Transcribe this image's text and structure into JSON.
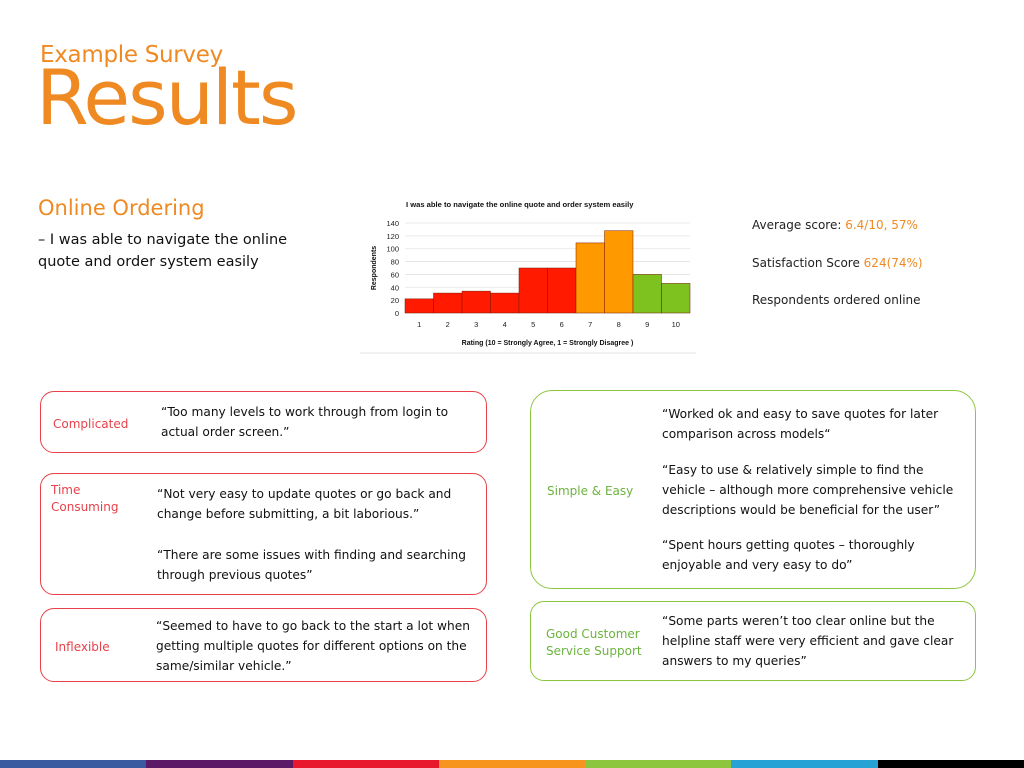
{
  "header": {
    "subtitle": "Example Survey",
    "title": "Results"
  },
  "section": {
    "heading": "Online Ordering",
    "question": "– I was able to navigate the online quote and order system easily"
  },
  "chart_data": {
    "type": "bar",
    "title": "I was able to navigate the online quote and order system easily",
    "xlabel": "Rating (10 = Strongly Agree, 1 = Strongly Disagree )",
    "ylabel": "Respondents",
    "categories": [
      "1",
      "2",
      "3",
      "4",
      "5",
      "6",
      "7",
      "8",
      "9",
      "10"
    ],
    "values": [
      22,
      31,
      34,
      31,
      70,
      70,
      109,
      128,
      60,
      46
    ],
    "yticks": [
      0,
      20,
      40,
      60,
      80,
      100,
      120,
      140
    ],
    "ylim": [
      0,
      140
    ],
    "colors": [
      "#ff1a00",
      "#ff1a00",
      "#ff1a00",
      "#ff1a00",
      "#ff1a00",
      "#ff1a00",
      "#ff9900",
      "#ff9900",
      "#7ec21f",
      "#7ec21f"
    ],
    "grid": true,
    "legend": "none"
  },
  "stats": {
    "avg_label": "Average score: ",
    "avg_value": "6.4/10, 57%",
    "sat_label": "Satisfaction Score ",
    "sat_value": "624(74%)",
    "online_label": "Respondents ordered online"
  },
  "feedback_negative": [
    {
      "label": "Complicated",
      "quotes": [
        "“Too many levels to work through from login to actual order screen.”"
      ]
    },
    {
      "label": "Time Consuming",
      "quotes": [
        "“Not very easy to update quotes or go back and change before submitting, a bit laborious.”",
        "“There are some issues with finding and searching through previous quotes”"
      ]
    },
    {
      "label": "Inflexible",
      "quotes": [
        "“Seemed to have to go back to the start a lot when getting multiple quotes for different options on the same/similar vehicle.”"
      ]
    }
  ],
  "feedback_positive": [
    {
      "label": "Simple & Easy",
      "quotes": [
        "“Worked ok and easy to save quotes for later comparison across models“",
        "“Easy to use & relatively simple to find the vehicle – although more comprehensive vehicle descriptions would be beneficial for the user”",
        "“Spent hours getting quotes – thoroughly enjoyable and very easy to do”"
      ]
    },
    {
      "label": "Good Customer Service Support",
      "quotes": [
        "“Some parts weren’t too clear online but the helpline staff were very efficient and gave clear answers to my queries”"
      ]
    }
  ],
  "colors": {
    "accent": "#ef8a22",
    "negative": "#e8414a",
    "positive": "#8cc63f",
    "bottom_bar": [
      "#3a5ba0",
      "#5c1a66",
      "#e8192c",
      "#f7941d",
      "#8cc63f",
      "#27a2d4",
      "#000000"
    ]
  }
}
